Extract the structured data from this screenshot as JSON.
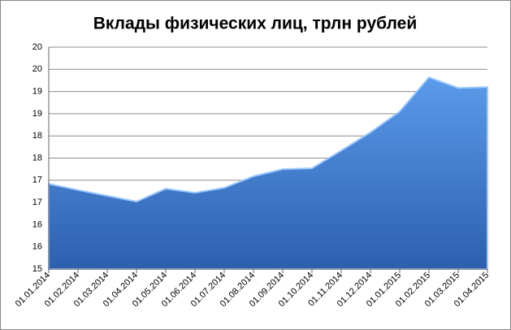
{
  "chart_data": {
    "type": "area",
    "title": "Вклады физических лиц, трлн рублей",
    "categories": [
      "01.01.2014",
      "01.02.2014",
      "01.03.2014",
      "01.04.2014",
      "01.05.2014",
      "01.06.2014",
      "01.07.2014",
      "01.08.2014",
      "01.09.2014",
      "01.10.2014",
      "01.11.2014",
      "01.12.2014",
      "01.01.2015",
      "01.02.2015",
      "01.03.2015",
      "01.04.2015"
    ],
    "values": [
      16.92,
      16.78,
      16.65,
      16.52,
      16.81,
      16.72,
      16.83,
      17.09,
      17.25,
      17.27,
      17.67,
      18.08,
      18.55,
      19.32,
      19.08,
      19.1
    ],
    "color": "#3f7fd6",
    "ylim": [
      15,
      20
    ],
    "yticks": [
      15,
      {
        "value": 15.5,
        "label": "16"
      },
      16,
      {
        "value": 16.5,
        "label": "17"
      },
      17,
      {
        "value": 17.5,
        "label": "18"
      },
      18,
      {
        "value": 18.5,
        "label": "19"
      },
      19,
      {
        "value": 19.5,
        "label": "20"
      },
      20
    ],
    "grid": true
  }
}
